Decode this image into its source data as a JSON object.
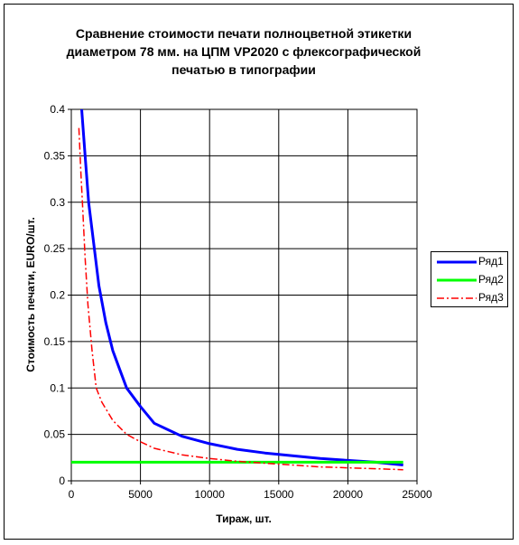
{
  "chart_data": {
    "type": "line",
    "title_lines": [
      "Сравнение стоимости печати полноцветной этикетки",
      "диаметром 78 мм. на ЦПМ VP2020 с флексографической",
      "печатью в типографии"
    ],
    "xlabel": "Тираж, шт.",
    "ylabel": "Стоимость печати, EURO/шт.",
    "xlim": [
      0,
      25000
    ],
    "ylim": [
      0,
      0.4
    ],
    "x_ticks": [
      0,
      5000,
      10000,
      15000,
      20000,
      25000
    ],
    "y_ticks": [
      0,
      0.05,
      0.1,
      0.15,
      0.2,
      0.25,
      0.3,
      0.35,
      0.4
    ],
    "x_tick_labels": [
      "0",
      "5000",
      "10000",
      "15000",
      "20000",
      "25000"
    ],
    "y_tick_labels": [
      "0",
      "0.05",
      "0.1",
      "0.15",
      "0.2",
      "0.25",
      "0.3",
      "0.35",
      "0.4"
    ],
    "grid": true,
    "legend_position": "right",
    "series": [
      {
        "name": "Ряд1",
        "color": "#0000ff",
        "style": "solid",
        "x": [
          750,
          1000,
          1250,
          1500,
          2000,
          2500,
          3000,
          3500,
          4000,
          5000,
          6000,
          7000,
          8000,
          10000,
          12000,
          14000,
          16000,
          18000,
          20000,
          22000,
          24000
        ],
        "y": [
          0.4,
          0.35,
          0.3,
          0.27,
          0.21,
          0.17,
          0.14,
          0.12,
          0.1,
          0.08,
          0.062,
          0.055,
          0.048,
          0.04,
          0.034,
          0.03,
          0.027,
          0.024,
          0.022,
          0.02,
          0.017
        ]
      },
      {
        "name": "Ряд2",
        "color": "#00ff00",
        "style": "solid",
        "x": [
          0,
          24000
        ],
        "y": [
          0.02,
          0.02
        ]
      },
      {
        "name": "Ряд3",
        "color": "#ff0000",
        "style": "dashdot",
        "x": [
          550,
          700,
          800,
          900,
          1000,
          1200,
          1500,
          1800,
          2200,
          2600,
          3000,
          4000,
          5000,
          6000,
          8000,
          10000,
          12000,
          14000,
          16000,
          18000,
          20000,
          22000,
          24000
        ],
        "y": [
          0.38,
          0.33,
          0.3,
          0.27,
          0.24,
          0.19,
          0.14,
          0.1,
          0.085,
          0.075,
          0.065,
          0.05,
          0.042,
          0.035,
          0.028,
          0.024,
          0.021,
          0.019,
          0.017,
          0.015,
          0.014,
          0.013,
          0.012
        ]
      }
    ]
  }
}
